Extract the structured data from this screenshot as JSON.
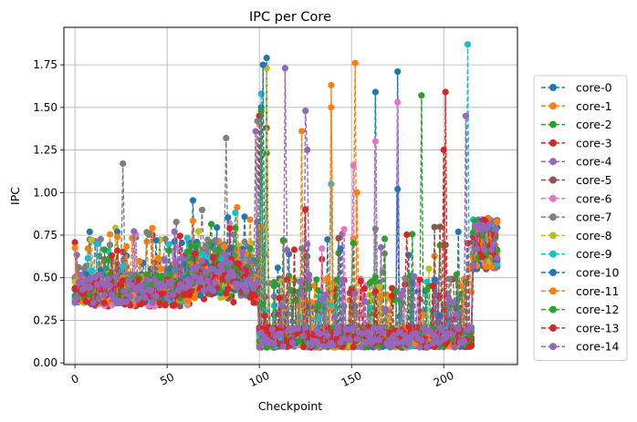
{
  "chart_data": {
    "type": "line",
    "title": "IPC per Core",
    "xlabel": "Checkpoint",
    "ylabel": "IPC",
    "xlim": [
      -6,
      240
    ],
    "ylim": [
      -0.01,
      1.97
    ],
    "xticks": [
      0,
      50,
      100,
      150,
      200
    ],
    "yticks": [
      0.0,
      0.25,
      0.5,
      0.75,
      1.0,
      1.25,
      1.5,
      1.75
    ],
    "xtick_labels": [
      "0",
      "50",
      "100",
      "150",
      "200"
    ],
    "ytick_labels": [
      "0.00",
      "0.25",
      "0.50",
      "0.75",
      "1.00",
      "1.25",
      "1.50",
      "1.75"
    ],
    "grid": true,
    "legend_position": "right-outside",
    "line_style": "dashed",
    "marker": "circle",
    "n_points": 230,
    "series": [
      {
        "name": "core-0",
        "color": "#1f77b4",
        "base": 0.45,
        "spikes": [
          [
            104,
            1.79
          ],
          [
            175,
            1.71
          ],
          [
            163,
            1.59
          ],
          [
            101,
            1.5
          ]
        ]
      },
      {
        "name": "core-1",
        "color": "#ff7f0e",
        "base": 0.42,
        "spikes": [
          [
            152,
            1.76
          ],
          [
            139,
            1.63
          ],
          [
            123,
            1.36
          ]
        ]
      },
      {
        "name": "core-2",
        "color": "#2ca02c",
        "base": 0.42,
        "spikes": [
          [
            188,
            1.57
          ],
          [
            104,
            1.23
          ]
        ]
      },
      {
        "name": "core-3",
        "color": "#d62728",
        "base": 0.4,
        "spikes": [
          [
            201,
            1.59
          ],
          [
            100,
            1.45
          ]
        ]
      },
      {
        "name": "core-4",
        "color": "#9467bd",
        "base": 0.42,
        "spikes": [
          [
            125,
            1.48
          ],
          [
            126,
            1.25
          ]
        ]
      },
      {
        "name": "core-5",
        "color": "#8c564b",
        "base": 0.4,
        "spikes": [
          [
            104,
            1.38
          ]
        ]
      },
      {
        "name": "core-6",
        "color": "#e377c2",
        "base": 0.4,
        "spikes": [
          [
            175,
            1.53
          ],
          [
            163,
            1.3
          ],
          [
            151,
            1.16
          ]
        ]
      },
      {
        "name": "core-7",
        "color": "#7f7f7f",
        "base": 0.5,
        "spikes": [
          [
            26,
            1.17
          ],
          [
            82,
            1.32
          ],
          [
            99,
            1.42
          ]
        ]
      },
      {
        "name": "core-8",
        "color": "#bcbd22",
        "base": 0.42,
        "spikes": [
          [
            104,
            1.73
          ]
        ]
      },
      {
        "name": "core-9",
        "color": "#17becf",
        "base": 0.42,
        "spikes": [
          [
            213,
            1.87
          ],
          [
            101,
            1.58
          ],
          [
            139,
            1.05
          ]
        ]
      },
      {
        "name": "core-10",
        "color": "#1f77b4",
        "base": 0.42,
        "spikes": [
          [
            102,
            1.75
          ],
          [
            175,
            1.02
          ]
        ]
      },
      {
        "name": "core-11",
        "color": "#ff7f0e",
        "base": 0.42,
        "spikes": [
          [
            139,
            1.5
          ],
          [
            153,
            1.0
          ]
        ]
      },
      {
        "name": "core-12",
        "color": "#2ca02c",
        "base": 0.42,
        "spikes": [
          [
            101,
            1.48
          ],
          [
            113,
            0.72
          ]
        ]
      },
      {
        "name": "core-13",
        "color": "#d62728",
        "base": 0.4,
        "spikes": [
          [
            200,
            1.25
          ],
          [
            125,
            0.9
          ]
        ]
      },
      {
        "name": "core-14",
        "color": "#9467bd",
        "base": 0.42,
        "spikes": [
          [
            114,
            1.73
          ],
          [
            212,
            1.45
          ],
          [
            98,
            1.36
          ]
        ]
      }
    ]
  }
}
